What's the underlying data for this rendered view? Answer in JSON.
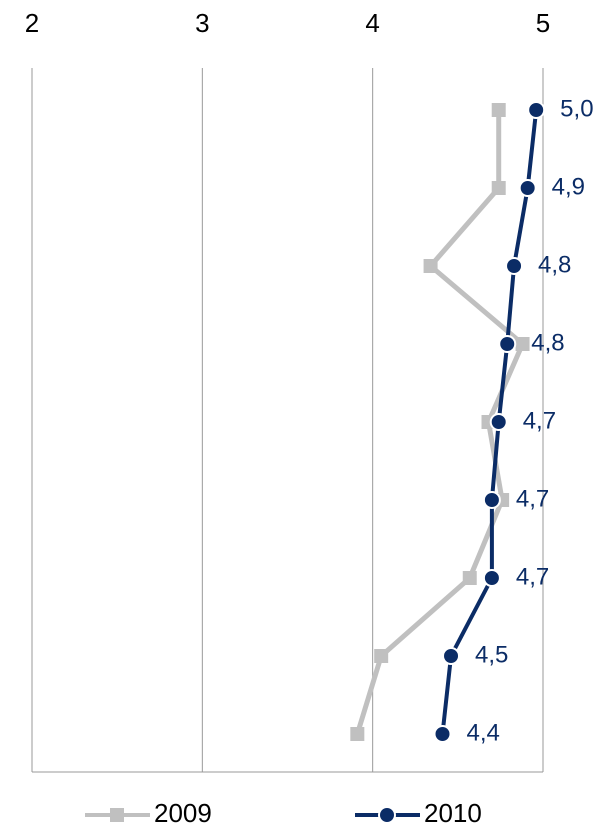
{
  "chart_data": {
    "type": "line",
    "orientation": "horizontal",
    "categories": [
      null,
      null,
      null,
      null,
      null,
      null,
      null,
      null,
      null
    ],
    "xlim": [
      2,
      5
    ],
    "xticks": [
      2,
      3,
      4,
      5
    ],
    "grid": true,
    "legend": "bottom",
    "series": [
      {
        "name": "2009",
        "color": "#c0c0c0",
        "marker": "square",
        "values": [
          4.74,
          4.74,
          4.34,
          4.88,
          4.68,
          4.76,
          4.57,
          4.05,
          3.91
        ]
      },
      {
        "name": "2010",
        "color": "#0b2c66",
        "marker": "circle",
        "values": [
          4.96,
          4.91,
          4.83,
          4.79,
          4.74,
          4.7,
          4.7,
          4.46,
          4.41
        ],
        "value_labels": [
          "5,0",
          "4,9",
          "4,8",
          "4,8",
          "4,7",
          "4,7",
          "4,7",
          "4,5",
          "4,4"
        ]
      }
    ]
  }
}
